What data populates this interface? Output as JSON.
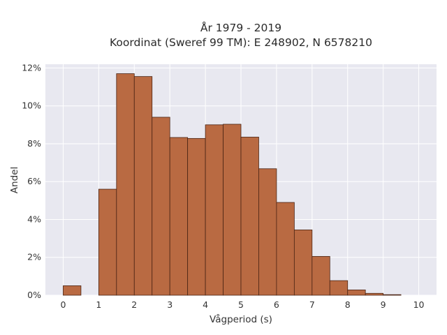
{
  "chart_data": {
    "type": "bar",
    "title": "År 1979 - 2019",
    "subtitle": "Koordinat (Sweref 99 TM): E 248902, N 6578210",
    "xlabel": "Vågperiod (s)",
    "ylabel": "Andel",
    "xlim": [
      -0.5,
      10.5
    ],
    "ylim": [
      0,
      12.2
    ],
    "x_ticks": [
      0,
      1,
      2,
      3,
      4,
      5,
      6,
      7,
      8,
      9,
      10
    ],
    "y_ticks": [
      0,
      2,
      4,
      6,
      8,
      10,
      12
    ],
    "y_tick_suffix": "%",
    "bin_width": 0.5,
    "bins": [
      {
        "x0": 0.0,
        "value": 0.5
      },
      {
        "x0": 0.5,
        "value": 0.0
      },
      {
        "x0": 1.0,
        "value": 5.6
      },
      {
        "x0": 1.5,
        "value": 11.7
      },
      {
        "x0": 2.0,
        "value": 11.55
      },
      {
        "x0": 2.5,
        "value": 9.4
      },
      {
        "x0": 3.0,
        "value": 8.33
      },
      {
        "x0": 3.5,
        "value": 8.28
      },
      {
        "x0": 4.0,
        "value": 9.0
      },
      {
        "x0": 4.5,
        "value": 9.03
      },
      {
        "x0": 5.0,
        "value": 8.35
      },
      {
        "x0": 5.5,
        "value": 6.68
      },
      {
        "x0": 6.0,
        "value": 4.9
      },
      {
        "x0": 6.5,
        "value": 3.45
      },
      {
        "x0": 7.0,
        "value": 2.05
      },
      {
        "x0": 7.5,
        "value": 0.77
      },
      {
        "x0": 8.0,
        "value": 0.28
      },
      {
        "x0": 8.5,
        "value": 0.1
      },
      {
        "x0": 9.0,
        "value": 0.03
      }
    ],
    "grid": true,
    "colors": {
      "bar_fill": "#b96a42",
      "bar_stroke": "#4a2414",
      "plot_background": "#e8e8f0",
      "grid": "#ffffff"
    }
  }
}
